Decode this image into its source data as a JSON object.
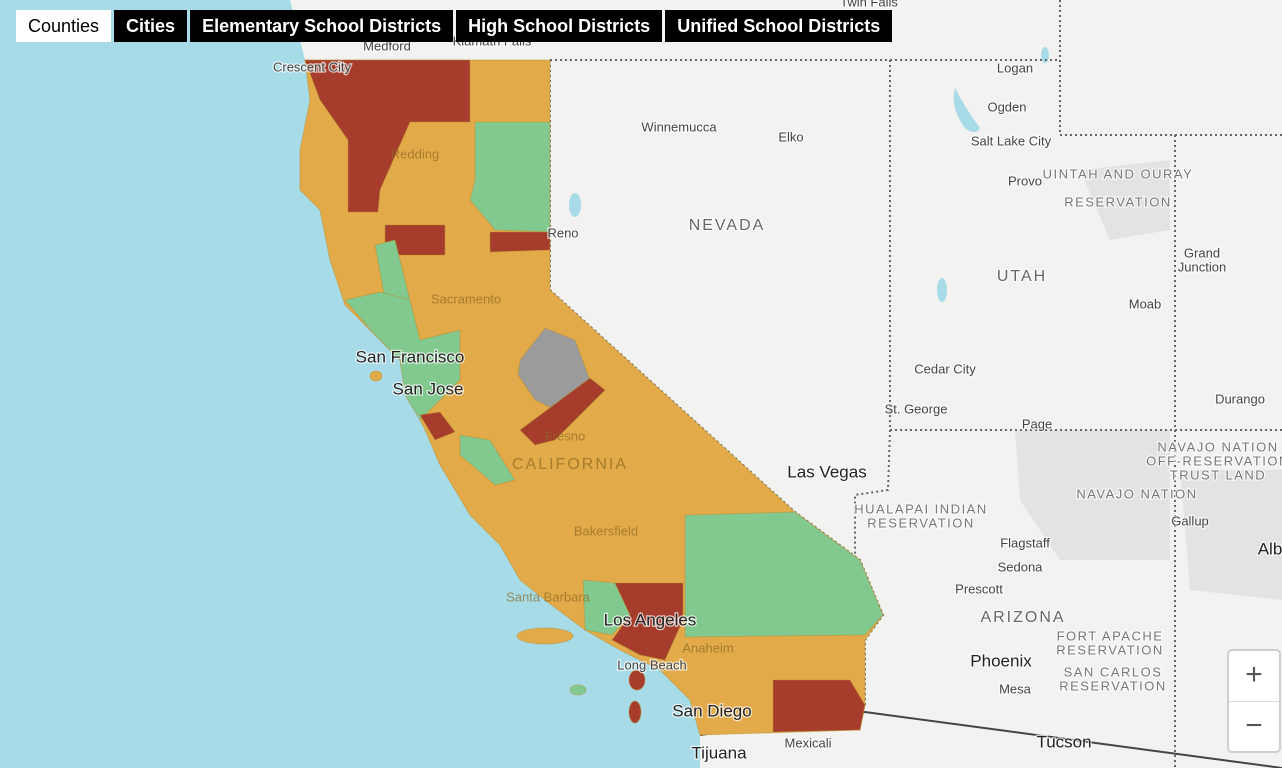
{
  "tabs": [
    {
      "label": "Counties",
      "active": true
    },
    {
      "label": "Cities",
      "active": false
    },
    {
      "label": "Elementary School Districts",
      "active": false
    },
    {
      "label": "High School Districts",
      "active": false
    },
    {
      "label": "Unified School Districts",
      "active": false
    }
  ],
  "map_labels": [
    {
      "text": "Twin Falls",
      "style": "city"
    },
    {
      "text": "Medford",
      "style": "city"
    },
    {
      "text": "Klamath Falls",
      "style": "city"
    },
    {
      "text": "Crescent City",
      "style": "city"
    },
    {
      "text": "Logan",
      "style": "city"
    },
    {
      "text": "Ogden",
      "style": "city"
    },
    {
      "text": "Winnemucca",
      "style": "city"
    },
    {
      "text": "Elko",
      "style": "city"
    },
    {
      "text": "Salt Lake City",
      "style": "city"
    },
    {
      "text": "Redding",
      "style": "ghost"
    },
    {
      "text": "Provo",
      "style": "city"
    },
    {
      "text": "UINTAH AND OURAY",
      "style": "reservation"
    },
    {
      "text": "RESERVATION",
      "style": "reservation"
    },
    {
      "text": "NEVADA",
      "style": "state"
    },
    {
      "text": "Reno",
      "style": "city"
    },
    {
      "text": "Grand",
      "style": "city"
    },
    {
      "text": "Junction",
      "style": "city"
    },
    {
      "text": "UTAH",
      "style": "state"
    },
    {
      "text": "Sacramento",
      "style": "ghost"
    },
    {
      "text": "San Francisco",
      "style": "major"
    },
    {
      "text": "Moab",
      "style": "city"
    },
    {
      "text": "San Jose",
      "style": "major"
    },
    {
      "text": "Cedar City",
      "style": "city"
    },
    {
      "text": "Fresno",
      "style": "ghost"
    },
    {
      "text": "St. George",
      "style": "city"
    },
    {
      "text": "Page",
      "style": "city"
    },
    {
      "text": "Durango",
      "style": "city"
    },
    {
      "text": "NAVAJO NATION",
      "style": "reservation"
    },
    {
      "text": "OFF-RESERVATION",
      "style": "reservation"
    },
    {
      "text": "TRUST LAND",
      "style": "reservation"
    },
    {
      "text": "CALIFORNIA",
      "style": "ghost-state"
    },
    {
      "text": "Las Vegas",
      "style": "major"
    },
    {
      "text": "NAVAJO NATION",
      "style": "reservation"
    },
    {
      "text": "HUALAPAI INDIAN",
      "style": "reservation"
    },
    {
      "text": "RESERVATION",
      "style": "reservation"
    },
    {
      "text": "Bakersfield",
      "style": "ghost"
    },
    {
      "text": "Gallup",
      "style": "city"
    },
    {
      "text": "Flagstaff",
      "style": "city"
    },
    {
      "text": "Sedona",
      "style": "city"
    },
    {
      "text": "Alb",
      "style": "major"
    },
    {
      "text": "Prescott",
      "style": "city"
    },
    {
      "text": "Santa Barbara",
      "style": "ghost"
    },
    {
      "text": "ARIZONA",
      "style": "state"
    },
    {
      "text": "Los Angeles",
      "style": "major"
    },
    {
      "text": "FORT APACHE",
      "style": "reservation"
    },
    {
      "text": "RESERVATION",
      "style": "reservation"
    },
    {
      "text": "Anaheim",
      "style": "ghost"
    },
    {
      "text": "Phoenix",
      "style": "major"
    },
    {
      "text": "SAN CARLOS",
      "style": "reservation"
    },
    {
      "text": "RESERVATION",
      "style": "reservation"
    },
    {
      "text": "Long Beach",
      "style": "city"
    },
    {
      "text": "Mesa",
      "style": "city"
    },
    {
      "text": "San Diego",
      "style": "major"
    },
    {
      "text": "Tijuana",
      "style": "major"
    },
    {
      "text": "Mexicali",
      "style": "city"
    },
    {
      "text": "Tucson",
      "style": "major"
    }
  ],
  "zoom": {
    "zoom_in": "+",
    "zoom_out": "−"
  }
}
